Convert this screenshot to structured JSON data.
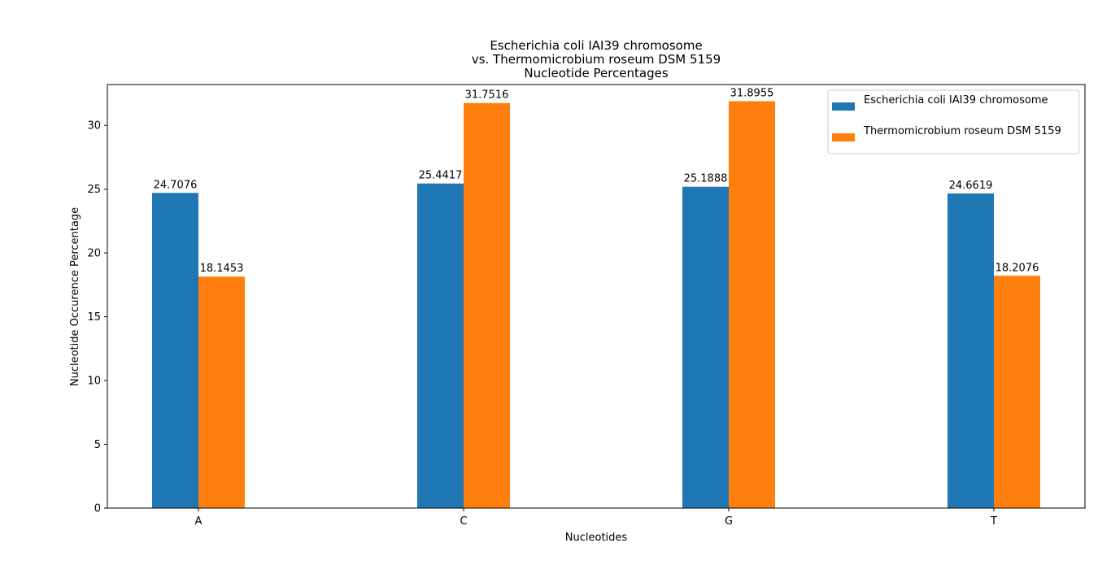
{
  "chart_data": {
    "type": "bar",
    "title_lines": [
      "Escherichia coli IAI39 chromosome",
      "vs. Thermomicrobium roseum DSM 5159",
      "Nucleotide Percentages"
    ],
    "xlabel": "Nucleotides",
    "ylabel": "Nucleotide Occurence Percentage",
    "categories": [
      "A",
      "C",
      "G",
      "T"
    ],
    "ylim": [
      0,
      33.2
    ],
    "yticks": [
      0,
      5,
      10,
      15,
      20,
      25,
      30
    ],
    "legend_position": "top-right",
    "grid": false,
    "series": [
      {
        "name": "Escherichia coli IAI39 chromosome",
        "color": "#1f77b4",
        "values": [
          24.7076,
          25.4417,
          25.1888,
          24.6619
        ],
        "labels": [
          "24.7076",
          "25.4417",
          "25.1888",
          "24.6619"
        ]
      },
      {
        "name": "Thermomicrobium roseum DSM 5159",
        "color": "#ff7f0e",
        "values": [
          18.1453,
          31.7516,
          31.8955,
          18.2076
        ],
        "labels": [
          "18.1453",
          "31.7516",
          "31.8955",
          "18.2076"
        ]
      }
    ]
  }
}
